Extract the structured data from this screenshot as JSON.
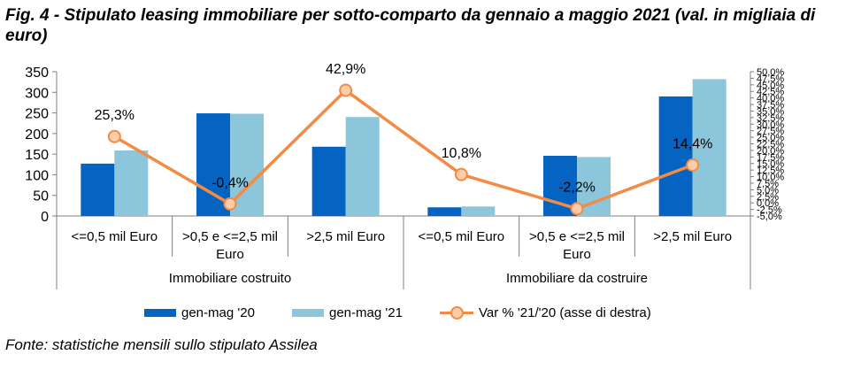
{
  "figure": {
    "title": "Fig. 4 - Stipulato leasing immobiliare per sotto-comparto da gennaio a maggio 2021 (val. in migliaia di euro)",
    "source": "Fonte: statistiche mensili sullo stipulato Assilea"
  },
  "colors": {
    "series1": "#0563C1",
    "series2": "#8CC6DA",
    "line": "#F28B45",
    "marker_fill": "#FBCDA8"
  },
  "chart_data": {
    "type": "bar",
    "categories": [
      [
        "<=0,5 mil Euro"
      ],
      [
        ">0,5 e <=2,5 mil",
        "Euro"
      ],
      [
        ">2,5 mil Euro"
      ],
      [
        "<=0,5 mil Euro"
      ],
      [
        ">0,5 e <=2,5 mil",
        "Euro"
      ],
      [
        ">2,5 mil Euro"
      ]
    ],
    "groups": [
      {
        "label": "Immobiliare costruito",
        "span": [
          0,
          2
        ]
      },
      {
        "label": "Immobiliare da costruire",
        "span": [
          3,
          5
        ]
      }
    ],
    "series": [
      {
        "name": "gen-mag '20",
        "type": "bar",
        "axis": "left",
        "values": [
          127,
          249,
          168,
          21,
          146,
          290
        ]
      },
      {
        "name": "gen-mag '21",
        "type": "bar",
        "axis": "left",
        "values": [
          159,
          248,
          240,
          23,
          143,
          332
        ]
      },
      {
        "name": "Var % '21/'20 (asse di destra)",
        "type": "line",
        "axis": "right",
        "values": [
          25.3,
          -0.4,
          42.9,
          10.8,
          -2.2,
          14.4
        ],
        "labels": [
          "25,3%",
          "-0,4%",
          "42,9%",
          "10,8%",
          "-2,2%",
          "14,4%"
        ]
      }
    ],
    "y_left": {
      "min": 0,
      "max": 350,
      "step": 50,
      "ticks": [
        "0",
        "50",
        "100",
        "150",
        "200",
        "250",
        "300",
        "350"
      ]
    },
    "y_right": {
      "min": -5,
      "max": 50,
      "step": 2.5,
      "ticks": [
        "-5,0%",
        "-2,5%",
        "0,0%",
        "2,5%",
        "5,0%",
        "7,5%",
        "10,0%",
        "12,5%",
        "15,0%",
        "17,5%",
        "20,0%",
        "22,5%",
        "25,0%",
        "27,5%",
        "30,0%",
        "32,5%",
        "35,0%",
        "37,5%",
        "40,0%",
        "42,5%",
        "45,0%",
        "47,5%",
        "50,0%"
      ]
    },
    "grid": false,
    "legend_position": "bottom"
  }
}
